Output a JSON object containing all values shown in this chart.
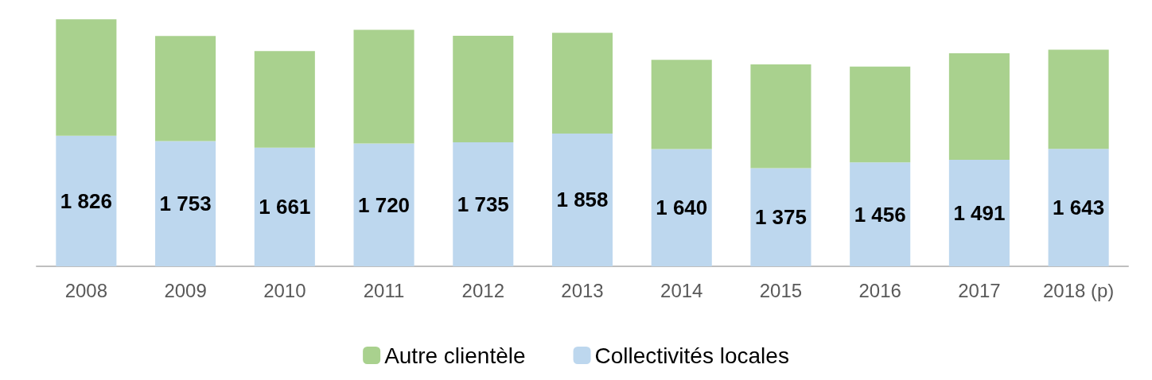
{
  "chart_data": {
    "type": "bar",
    "stacked": true,
    "categories": [
      "2008",
      "2009",
      "2010",
      "2011",
      "2012",
      "2013",
      "2014",
      "2015",
      "2016",
      "2017",
      "2018 (p)"
    ],
    "series": [
      {
        "name": "Collectivités locales",
        "color": "#bdd7ee",
        "values": [
          1826,
          1753,
          1661,
          1720,
          1735,
          1858,
          1640,
          1375,
          1456,
          1491,
          1643
        ],
        "value_labels": [
          "1 826",
          "1 753",
          "1 661",
          "1 720",
          "1 735",
          "1 858",
          "1 640",
          "1 375",
          "1 456",
          "1 491",
          "1 643"
        ]
      },
      {
        "name": "Autre clientèle",
        "color": "#a9d18e",
        "values": [
          1630,
          1470,
          1350,
          1590,
          1490,
          1410,
          1250,
          1450,
          1340,
          1490,
          1390
        ]
      }
    ],
    "ylim": [
      0,
      3460
    ],
    "tick_labels": "x",
    "grid": false,
    "legend": "bottom"
  }
}
